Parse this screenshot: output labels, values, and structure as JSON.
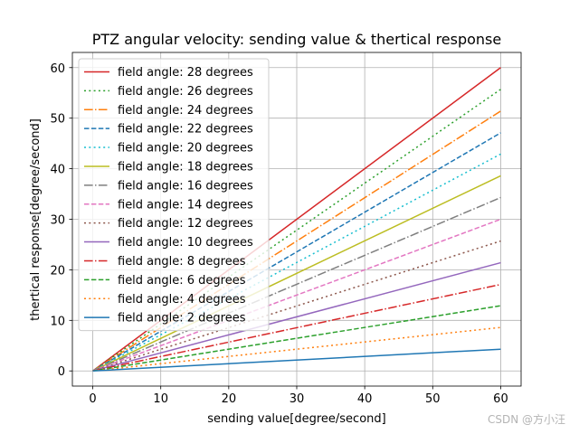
{
  "chart_data": {
    "type": "line",
    "title": "PTZ angular velocity: sending value & thertical response",
    "xlabel": "sending value[degree/second]",
    "ylabel": "thertical response[degree/second]",
    "xlim": [
      -3,
      63
    ],
    "ylim": [
      -3,
      63
    ],
    "xticks": [
      0,
      10,
      20,
      30,
      40,
      50,
      60
    ],
    "yticks": [
      0,
      10,
      20,
      30,
      40,
      50,
      60
    ],
    "grid": true,
    "legend_position": "upper-left",
    "series": [
      {
        "name": "field angle: 28 degrees",
        "color": "#d62728",
        "style": "solid",
        "x": [
          0,
          60
        ],
        "y": [
          0,
          60
        ]
      },
      {
        "name": "field angle: 26 degrees",
        "color": "#2ca02c",
        "style": "dotted",
        "x": [
          0,
          60
        ],
        "y": [
          0,
          55.7
        ]
      },
      {
        "name": "field angle: 24 degrees",
        "color": "#ff7f0e",
        "style": "dashdot",
        "x": [
          0,
          60
        ],
        "y": [
          0,
          51.4
        ]
      },
      {
        "name": "field angle: 22 degrees",
        "color": "#1f77b4",
        "style": "dashed",
        "x": [
          0,
          60
        ],
        "y": [
          0,
          47.1
        ]
      },
      {
        "name": "field angle: 20 degrees",
        "color": "#17becf",
        "style": "dotted",
        "x": [
          0,
          60
        ],
        "y": [
          0,
          42.9
        ]
      },
      {
        "name": "field angle: 18 degrees",
        "color": "#bcbd22",
        "style": "solid",
        "x": [
          0,
          60
        ],
        "y": [
          0,
          38.6
        ]
      },
      {
        "name": "field angle: 16 degrees",
        "color": "#7f7f7f",
        "style": "dashdot",
        "x": [
          0,
          60
        ],
        "y": [
          0,
          34.3
        ]
      },
      {
        "name": "field angle: 14 degrees",
        "color": "#e377c2",
        "style": "dashed",
        "x": [
          0,
          60
        ],
        "y": [
          0,
          30.0
        ]
      },
      {
        "name": "field angle: 12 degrees",
        "color": "#8c564b",
        "style": "dotted",
        "x": [
          0,
          60
        ],
        "y": [
          0,
          25.7
        ]
      },
      {
        "name": "field angle: 10 degrees",
        "color": "#9467bd",
        "style": "solid",
        "x": [
          0,
          60
        ],
        "y": [
          0,
          21.4
        ]
      },
      {
        "name": "field angle: 8 degrees",
        "color": "#d62728",
        "style": "dashdot",
        "x": [
          0,
          60
        ],
        "y": [
          0,
          17.1
        ]
      },
      {
        "name": "field angle: 6 degrees",
        "color": "#2ca02c",
        "style": "dashed",
        "x": [
          0,
          60
        ],
        "y": [
          0,
          12.9
        ]
      },
      {
        "name": "field angle: 4 degrees",
        "color": "#ff7f0e",
        "style": "dotted",
        "x": [
          0,
          60
        ],
        "y": [
          0,
          8.6
        ]
      },
      {
        "name": "field angle: 2 degrees",
        "color": "#1f77b4",
        "style": "solid",
        "x": [
          0,
          60
        ],
        "y": [
          0,
          4.3
        ]
      }
    ]
  },
  "watermark": "CSDN @方小汪"
}
